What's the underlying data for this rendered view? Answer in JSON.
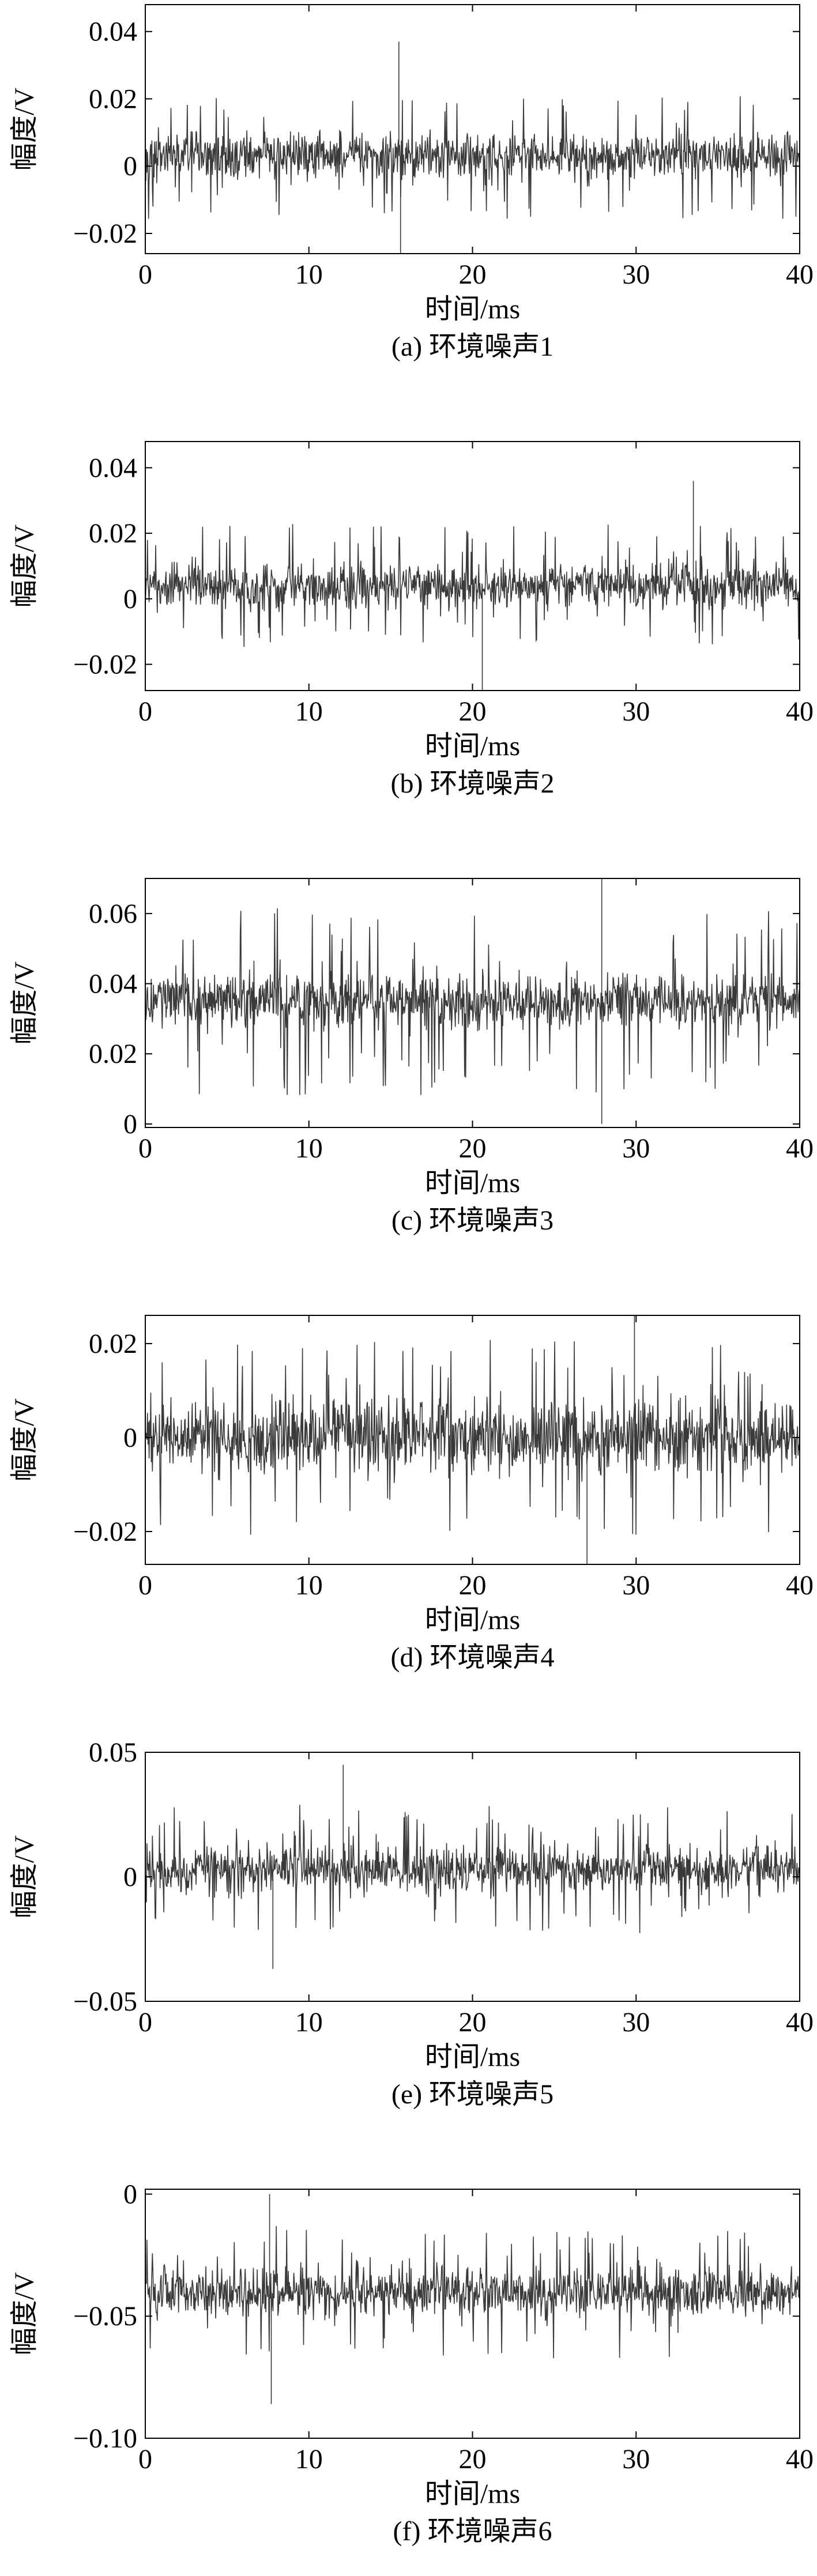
{
  "chart_data": [
    {
      "type": "line",
      "caption": "(a) 环境噪声1",
      "xlabel": "时间/ms",
      "ylabel": "幅度/V",
      "xlim": [
        0,
        40
      ],
      "ylim": [
        -0.026,
        0.048
      ],
      "xticks": [
        0,
        10,
        20,
        30,
        40
      ],
      "xtick_labels": [
        "0",
        "10",
        "20",
        "30",
        "40"
      ],
      "yticks": [
        0.04,
        0.02,
        0,
        -0.02
      ],
      "ytick_labels": [
        "0.04",
        "0.02",
        "0",
        "−0.02"
      ],
      "signal": {
        "mean": 0.003,
        "band_half_width": 0.006,
        "spike_half_width": 0.019,
        "min": -0.026,
        "max": 0.037,
        "samples": 1200
      },
      "peaks": [
        {
          "x": 15.5,
          "y": 0.037
        },
        {
          "x": 15.6,
          "y": -0.026
        }
      ]
    },
    {
      "type": "line",
      "caption": "(b) 环境噪声2",
      "xlabel": "时间/ms",
      "ylabel": "幅度/V",
      "xlim": [
        0,
        40
      ],
      "ylim": [
        -0.028,
        0.048
      ],
      "xticks": [
        0,
        10,
        20,
        30,
        40
      ],
      "xtick_labels": [
        "0",
        "10",
        "20",
        "30",
        "40"
      ],
      "yticks": [
        0.04,
        0.02,
        0,
        -0.02
      ],
      "ytick_labels": [
        "0.04",
        "0.02",
        "0",
        "−0.02"
      ],
      "signal": {
        "mean": 0.004,
        "band_half_width": 0.006,
        "spike_half_width": 0.019,
        "min": -0.028,
        "max": 0.036,
        "samples": 1200
      },
      "peaks": [
        {
          "x": 33.5,
          "y": 0.036
        },
        {
          "x": 20.6,
          "y": -0.028
        }
      ]
    },
    {
      "type": "line",
      "caption": "(c) 环境噪声3",
      "xlabel": "时间/ms",
      "ylabel": "幅度/V",
      "xlim": [
        0,
        40
      ],
      "ylim": [
        -0.001,
        0.07
      ],
      "xticks": [
        0,
        10,
        20,
        30,
        40
      ],
      "xtick_labels": [
        "0",
        "10",
        "20",
        "30",
        "40"
      ],
      "yticks": [
        0.06,
        0.04,
        0.02,
        0
      ],
      "ytick_labels": [
        "0.06",
        "0.04",
        "0.02",
        "0"
      ],
      "signal": {
        "mean": 0.035,
        "band_half_width": 0.007,
        "spike_half_width": 0.027,
        "min": 0.0,
        "max": 0.07,
        "samples": 1200
      },
      "peaks": [
        {
          "x": 27.9,
          "y": 0.07
        },
        {
          "x": 27.9,
          "y": 0.0
        }
      ]
    },
    {
      "type": "line",
      "caption": "(d) 环境噪声4",
      "xlabel": "时间/ms",
      "ylabel": "幅度/V",
      "xlim": [
        0,
        40
      ],
      "ylim": [
        -0.027,
        0.026
      ],
      "xticks": [
        0,
        10,
        20,
        30,
        40
      ],
      "xtick_labels": [
        "0",
        "10",
        "20",
        "30",
        "40"
      ],
      "yticks": [
        0.02,
        0,
        -0.02
      ],
      "ytick_labels": [
        "0.02",
        "0",
        "−0.02"
      ],
      "signal": {
        "mean": 0.0,
        "band_half_width": 0.007,
        "spike_half_width": 0.021,
        "min": -0.027,
        "max": 0.026,
        "samples": 1200
      },
      "peaks": [
        {
          "x": 29.9,
          "y": 0.026
        },
        {
          "x": 27.0,
          "y": -0.027
        }
      ]
    },
    {
      "type": "line",
      "caption": "(e) 环境噪声5",
      "xlabel": "时间/ms",
      "ylabel": "幅度/V",
      "xlim": [
        0,
        40
      ],
      "ylim": [
        -0.05,
        0.05
      ],
      "xticks": [
        0,
        10,
        20,
        30,
        40
      ],
      "xtick_labels": [
        "0",
        "10",
        "20",
        "30",
        "40"
      ],
      "yticks": [
        0.05,
        0,
        -0.05
      ],
      "ytick_labels": [
        "0.05",
        "0",
        "−0.05"
      ],
      "signal": {
        "mean": 0.003,
        "band_half_width": 0.008,
        "spike_half_width": 0.026,
        "min": -0.037,
        "max": 0.045,
        "samples": 1200
      },
      "peaks": [
        {
          "x": 12.1,
          "y": 0.045
        },
        {
          "x": 7.8,
          "y": -0.037
        }
      ]
    },
    {
      "type": "line",
      "caption": "(f) 环境噪声6",
      "xlabel": "时间/ms",
      "ylabel": "幅度/V",
      "xlim": [
        0,
        40
      ],
      "ylim": [
        -0.1,
        0.002
      ],
      "xticks": [
        0,
        10,
        20,
        30,
        40
      ],
      "xtick_labels": [
        "0",
        "10",
        "20",
        "30",
        "40"
      ],
      "yticks": [
        0,
        -0.05,
        -0.1
      ],
      "ytick_labels": [
        "0",
        "−0.05",
        "−0.10"
      ],
      "signal": {
        "mean": -0.04,
        "band_half_width": 0.009,
        "spike_half_width": 0.028,
        "min": -0.086,
        "max": 0.0,
        "samples": 1200
      },
      "peaks": [
        {
          "x": 7.6,
          "y": 0.0
        },
        {
          "x": 7.7,
          "y": -0.086
        }
      ]
    }
  ],
  "colors": {
    "trace": "#3a3a3a",
    "axis": "#000000",
    "background": "#ffffff"
  }
}
